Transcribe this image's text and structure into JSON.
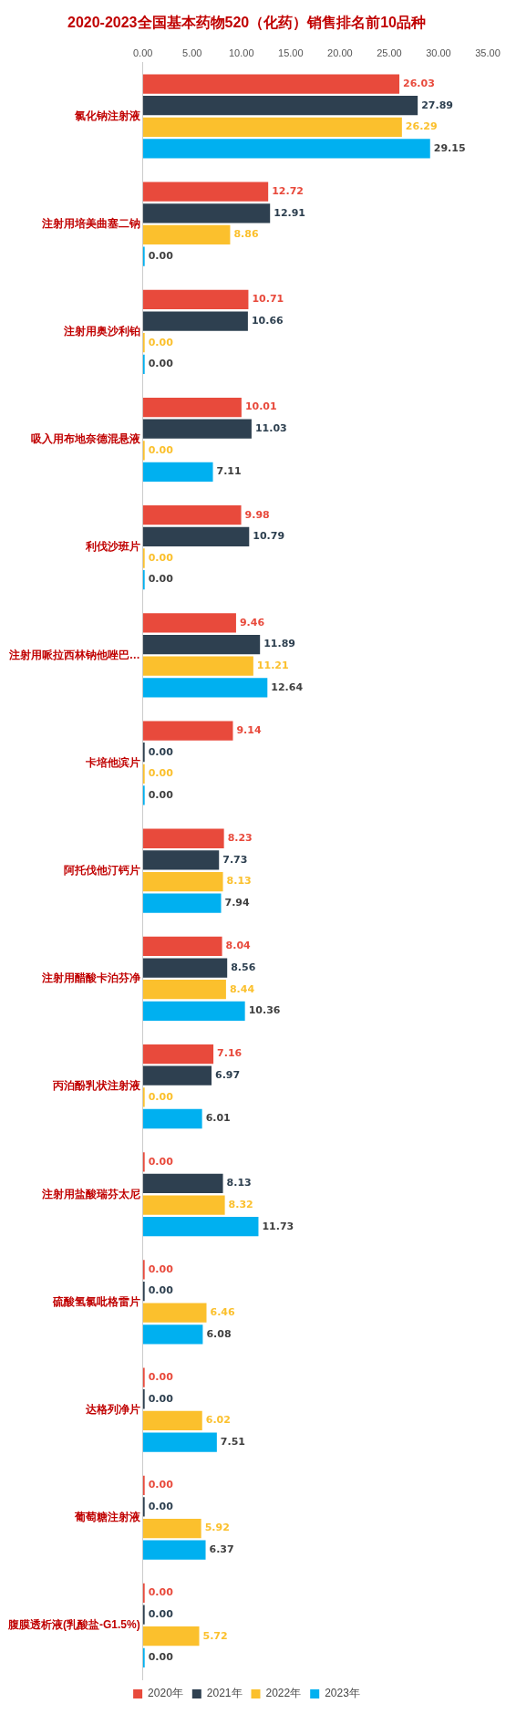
{
  "chart_data": {
    "type": "bar",
    "orientation": "horizontal",
    "title": "2020-2023全国基本药物520（化药）销售排名前10品种",
    "categories": [
      "氯化钠注射液",
      "注射用培美曲塞二钠",
      "注射用奥沙利铂",
      "吸入用布地奈德混悬液",
      "利伐沙班片",
      "注射用哌拉西林钠他唑巴…",
      "卡培他滨片",
      "阿托伐他汀钙片",
      "注射用醋酸卡泊芬净",
      "丙泊酚乳状注射液",
      "注射用盐酸瑞芬太尼",
      "硫酸氢氯吡格雷片",
      "达格列净片",
      "葡萄糖注射液",
      "腹膜透析液(乳酸盐-G1.5%)"
    ],
    "series": [
      {
        "name": "2020年",
        "color": "#e84a3c",
        "values": [
          26.03,
          12.72,
          10.71,
          10.01,
          9.98,
          9.46,
          9.14,
          8.23,
          8.04,
          7.16,
          0,
          0,
          0,
          0,
          0
        ],
        "value_labels": [
          "26.03",
          "12.72",
          "10.71",
          "10.01",
          "9.98",
          "9.46",
          "9.14",
          "8.23",
          "8.04",
          "7.16",
          "0.00",
          "0.00",
          "0.00",
          "0.00",
          "0.00"
        ]
      },
      {
        "name": "2021年",
        "color": "#2e4050",
        "values": [
          27.89,
          12.91,
          10.66,
          11.03,
          10.79,
          11.89,
          0,
          7.73,
          8.56,
          6.97,
          8.13,
          0,
          0,
          0,
          0
        ],
        "value_labels": [
          "27.89",
          "12.91",
          "10.66",
          "11.03",
          "10.79",
          "11.89",
          "0.00",
          "7.73",
          "8.56",
          "6.97",
          "8.13",
          "0.00",
          "0.00",
          "0.00",
          "0.00"
        ]
      },
      {
        "name": "2022年",
        "color": "#fbc02d",
        "values": [
          26.29,
          8.86,
          0,
          0,
          0,
          11.21,
          0,
          8.13,
          8.44,
          0,
          8.32,
          6.46,
          6.02,
          5.92,
          5.72
        ],
        "value_labels": [
          "26.29",
          "8.86",
          "0.00",
          "0.00",
          "0.00",
          "11.21",
          "0.00",
          "8.13",
          "8.44",
          "0.00",
          "8.32",
          "6.46",
          "6.02",
          "5.92",
          "5.72"
        ]
      },
      {
        "name": "2023年",
        "color": "#00b0f0",
        "values": [
          29.15,
          0,
          0,
          7.11,
          0,
          12.64,
          0,
          7.94,
          10.36,
          6.01,
          11.73,
          6.08,
          7.51,
          6.37,
          0
        ],
        "value_labels": [
          "29.15",
          "0.00",
          "0.00",
          "7.11",
          "0.00",
          "12.64",
          "0.00",
          "7.94",
          "10.36",
          "6.01",
          "11.73",
          "6.08",
          "7.51",
          "6.37",
          "0.00"
        ]
      }
    ],
    "xlim": [
      0,
      35
    ],
    "xticks": [
      {
        "value": 0,
        "label": "0.00"
      },
      {
        "value": 5,
        "label": "5.00"
      },
      {
        "value": 10,
        "label": "10.00"
      },
      {
        "value": 15,
        "label": "15.00"
      },
      {
        "value": 20,
        "label": "20.00"
      },
      {
        "value": 25,
        "label": "25.00"
      },
      {
        "value": 30,
        "label": "30.00"
      },
      {
        "value": 35,
        "label": "35.00"
      }
    ],
    "legend": "bottom",
    "grid": false
  }
}
